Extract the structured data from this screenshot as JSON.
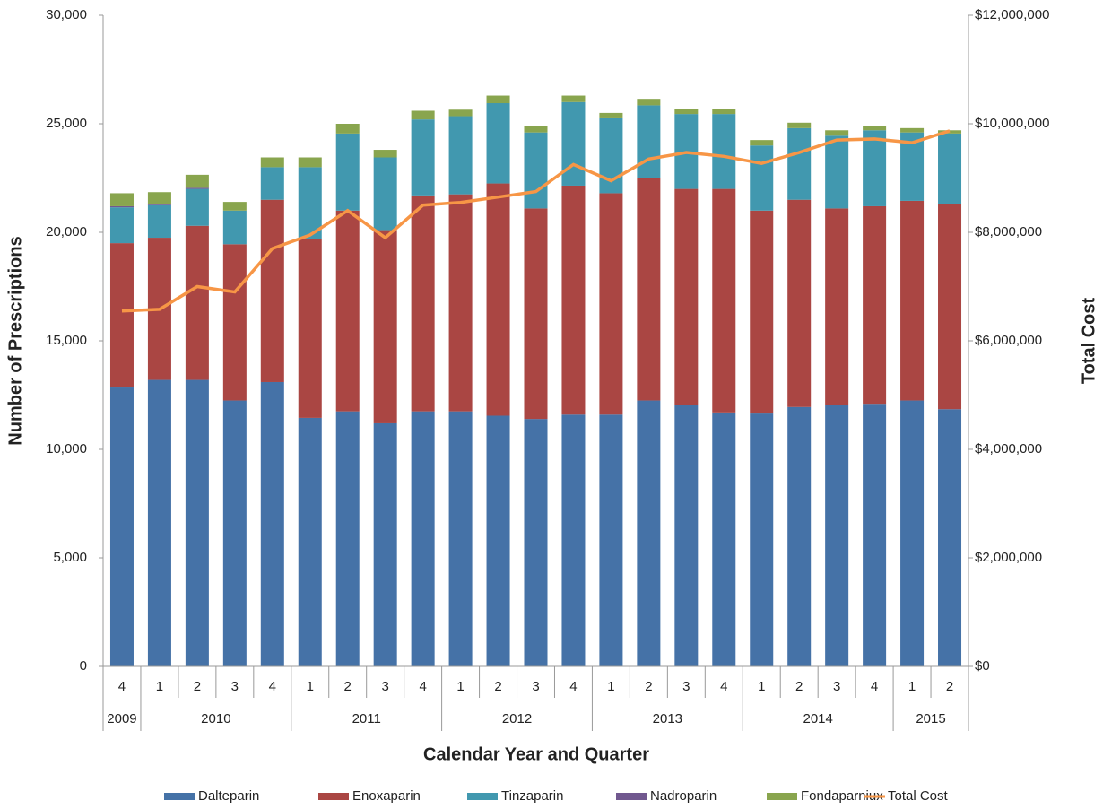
{
  "chart_data": {
    "type": "bar",
    "stacked": true,
    "x_label": "Calendar Year and Quarter",
    "y_label": "Number of Prescriptions",
    "y2_label": "Total Cost",
    "categories": [
      "4",
      "1",
      "2",
      "3",
      "4",
      "1",
      "2",
      "3",
      "4",
      "1",
      "2",
      "3",
      "4",
      "1",
      "2",
      "3",
      "4",
      "1",
      "2",
      "3",
      "4",
      "1",
      "2"
    ],
    "years": [
      "2009",
      "2010",
      null,
      null,
      null,
      "2011",
      null,
      null,
      null,
      "2012",
      null,
      null,
      null,
      "2013",
      null,
      null,
      null,
      "2014",
      null,
      null,
      null,
      "2015",
      null
    ],
    "ylim": [
      0,
      30000
    ],
    "yticks": [
      0,
      {
        "value": 5000,
        "label": "5,000"
      },
      {
        "value": 10000,
        "label": "10,000"
      },
      {
        "value": 15000,
        "label": "15,000"
      },
      {
        "value": 20000,
        "label": "20,000"
      },
      {
        "value": 25000,
        "label": "25,000"
      },
      {
        "value": 30000,
        "label": "30,000"
      }
    ],
    "y2lim": [
      0,
      12000000
    ],
    "y2ticks": [
      {
        "value": 0,
        "label": "$0"
      },
      {
        "value": 2000000,
        "label": "$2,000,000"
      },
      {
        "value": 4000000,
        "label": "$4,000,000"
      },
      {
        "value": 6000000,
        "label": "$6,000,000"
      },
      {
        "value": 8000000,
        "label": "$8,000,000"
      },
      {
        "value": 10000000,
        "label": "$10,000,000"
      },
      {
        "value": 12000000,
        "label": "$12,000,000"
      }
    ],
    "legend": "bottom",
    "series": [
      {
        "name": "Dalteparin",
        "color": "#4572a7",
        "type": "bar",
        "values": [
          12850,
          13200,
          13200,
          12250,
          13100,
          11450,
          11750,
          11200,
          11750,
          11750,
          11550,
          11400,
          11600,
          11600,
          12250,
          12050,
          11700,
          11650,
          11950,
          12050,
          12100,
          12250,
          11850
        ]
      },
      {
        "name": "Enoxaparin",
        "color": "#aa4643",
        "type": "bar",
        "values": [
          6650,
          6550,
          7100,
          7200,
          8400,
          8250,
          9250,
          8900,
          9950,
          10000,
          10700,
          9700,
          10550,
          10200,
          10250,
          9950,
          10300,
          9350,
          9550,
          9050,
          9100,
          9200,
          9450
        ]
      },
      {
        "name": "Tinzaparin",
        "color": "#4198af",
        "type": "bar",
        "values": [
          1650,
          1500,
          1700,
          1550,
          1500,
          3300,
          3550,
          3350,
          3500,
          3600,
          3700,
          3500,
          3850,
          3450,
          3350,
          3450,
          3450,
          3000,
          3300,
          3350,
          3500,
          3150,
          3250
        ]
      },
      {
        "name": "Nadroparin",
        "color": "#71588f",
        "type": "bar",
        "values": [
          50,
          50,
          50,
          0,
          0,
          0,
          0,
          0,
          0,
          0,
          0,
          0,
          0,
          0,
          0,
          0,
          0,
          0,
          0,
          0,
          0,
          0,
          0
        ]
      },
      {
        "name": "Fondaparniux",
        "color": "#89a54e",
        "type": "bar",
        "values": [
          600,
          550,
          600,
          400,
          450,
          450,
          450,
          350,
          400,
          300,
          350,
          300,
          300,
          250,
          300,
          250,
          250,
          250,
          250,
          250,
          200,
          200,
          150
        ]
      },
      {
        "name": "Total Cost",
        "color": "#f79646",
        "type": "line",
        "axis": "y2",
        "values": [
          6550000,
          6580000,
          7000000,
          6900000,
          7700000,
          7950000,
          8400000,
          7900000,
          8500000,
          8550000,
          8650000,
          8750000,
          9250000,
          8950000,
          9350000,
          9470000,
          9400000,
          9270000,
          9470000,
          9700000,
          9720000,
          9650000,
          9870000
        ]
      }
    ]
  }
}
